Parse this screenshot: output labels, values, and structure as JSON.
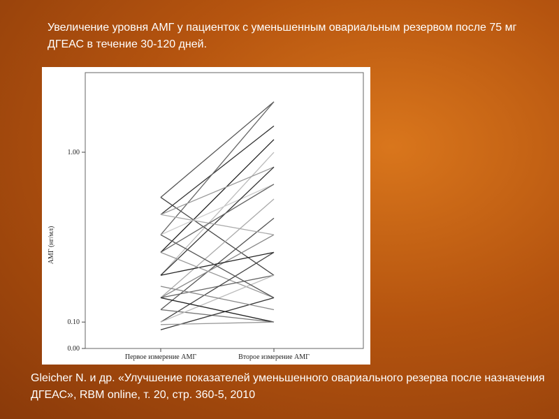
{
  "title": "Увеличение уровня АМГ у пациенток с уменьшенным овариальным резервом после 75 мг ДГЕАС в течение  30-120 дней.",
  "citation": "Gleicher N.  и др. «Улучшение показателей уменьшенного овариального резерва после назначения ДГЕАС», RBM online, т. 20, стр. 360-5, 2010",
  "chart_data": {
    "type": "line",
    "ylabel": "АМГ (нг/мл)",
    "categories": [
      "Первое измерение АМГ",
      "Второе измерение АМГ"
    ],
    "ylim": [
      0,
      1.63
    ],
    "yticks": [
      {
        "value": 0,
        "label": "0.00"
      },
      {
        "value": 0.1,
        "label": "0.10"
      },
      {
        "value": 1,
        "label": "1.00"
      }
    ],
    "series": [
      {
        "color": "#555555",
        "values": [
          0.71,
          1.38
        ]
      },
      {
        "color": "#333333",
        "values": [
          0.61,
          1.19
        ]
      },
      {
        "color": "#666666",
        "values": [
          0.5,
          1.38
        ]
      },
      {
        "color": "#222222",
        "values": [
          0.41,
          1.09
        ]
      },
      {
        "color": "#bbbbbb",
        "values": [
          0.3,
          1.0
        ]
      },
      {
        "color": "#444444",
        "values": [
          0.71,
          0.3
        ]
      },
      {
        "color": "#999999",
        "values": [
          0.61,
          0.9
        ]
      },
      {
        "color": "#cccccc",
        "values": [
          0.5,
          0.79
        ]
      },
      {
        "color": "#333333",
        "values": [
          0.3,
          0.9
        ]
      },
      {
        "color": "#aaaaaa",
        "values": [
          0.2,
          0.7
        ]
      },
      {
        "color": "#555555",
        "values": [
          0.15,
          0.59
        ]
      },
      {
        "color": "#888888",
        "values": [
          0.2,
          0.5
        ]
      },
      {
        "color": "#222222",
        "values": [
          0.3,
          0.41
        ]
      },
      {
        "color": "#999999",
        "values": [
          0.41,
          0.2
        ]
      },
      {
        "color": "#666666",
        "values": [
          0.2,
          0.3
        ]
      },
      {
        "color": "#444444",
        "values": [
          0.1,
          0.41
        ]
      },
      {
        "color": "#777777",
        "values": [
          0.15,
          0.1
        ]
      },
      {
        "color": "#333333",
        "values": [
          0.07,
          0.2
        ]
      },
      {
        "color": "#bbbbbb",
        "values": [
          0.1,
          0.3
        ]
      },
      {
        "color": "#555555",
        "values": [
          0.5,
          0.2
        ]
      },
      {
        "color": "#888888",
        "values": [
          0.25,
          0.15
        ]
      },
      {
        "color": "#aaaaaa",
        "values": [
          0.61,
          0.5
        ]
      },
      {
        "color": "#222222",
        "values": [
          0.2,
          0.1
        ]
      },
      {
        "color": "#666666",
        "values": [
          0.41,
          0.79
        ]
      },
      {
        "color": "#999999",
        "values": [
          0.09,
          0.1
        ]
      }
    ]
  }
}
